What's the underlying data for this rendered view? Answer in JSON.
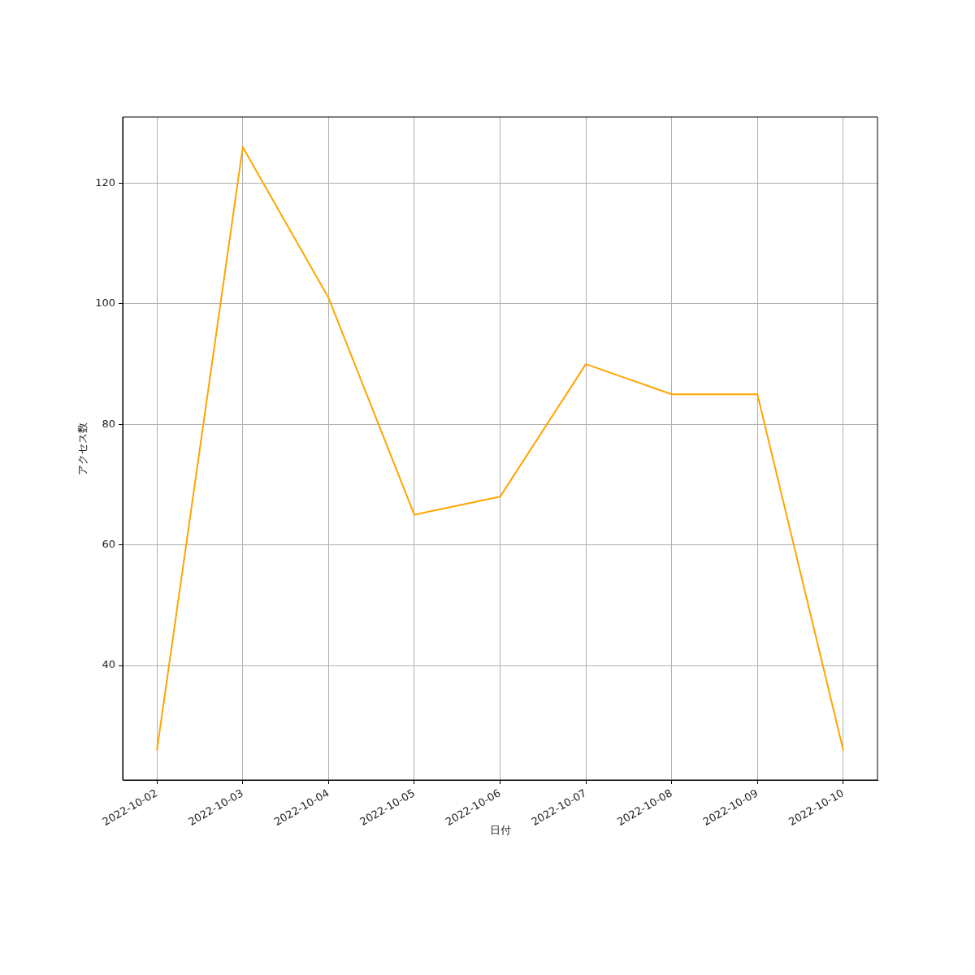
{
  "chart_data": {
    "type": "line",
    "xlabel": "日付",
    "ylabel": "アクセス数",
    "x": [
      "2022-10-02",
      "2022-10-03",
      "2022-10-04",
      "2022-10-05",
      "2022-10-06",
      "2022-10-07",
      "2022-10-08",
      "2022-10-09",
      "2022-10-10"
    ],
    "values": [
      26,
      126,
      101,
      65,
      68,
      90,
      85,
      85,
      26
    ],
    "color": "#ffa500",
    "xlim": [
      "2022-10-01T14:24",
      "2022-10-10T09:36"
    ],
    "xticks": [
      "2022-10-02",
      "2022-10-03",
      "2022-10-04",
      "2022-10-05",
      "2022-10-06",
      "2022-10-07",
      "2022-10-08",
      "2022-10-09",
      "2022-10-10"
    ],
    "ylim": [
      21,
      131
    ],
    "yticks": [
      40,
      60,
      80,
      100,
      120
    ],
    "grid": true
  }
}
